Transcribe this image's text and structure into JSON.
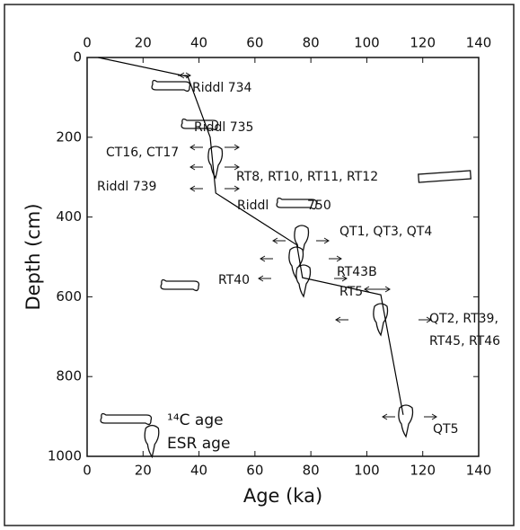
{
  "chart_data": {
    "type": "line",
    "xlabel": "Age (ka)",
    "ylabel": "Depth (cm)",
    "x": [
      4,
      36,
      44,
      46,
      75,
      77,
      105,
      113
    ],
    "values": [
      0,
      48,
      200,
      340,
      470,
      552,
      595,
      896
    ],
    "color": "#000000",
    "xlim": [
      0,
      140
    ],
    "xticks": [
      0,
      20,
      40,
      60,
      80,
      100,
      120,
      140
    ],
    "ylim": [
      0,
      1000
    ],
    "yticks": [
      0,
      200,
      400,
      600,
      800,
      1000
    ],
    "y_inverted": true,
    "annotations": [
      "Riddl 734",
      "Riddl 735",
      "CT16, CT17",
      "RT8, RT10, RT11, RT12",
      "Riddl 739",
      "Riddl",
      "750",
      "QT1, QT3, QT4",
      "RT43B",
      "RT40",
      "RT5",
      "QT2, RT39,",
      "RT45, RT46",
      "QT5"
    ],
    "legend": [
      "¹⁴C age",
      "ESR age"
    ]
  }
}
